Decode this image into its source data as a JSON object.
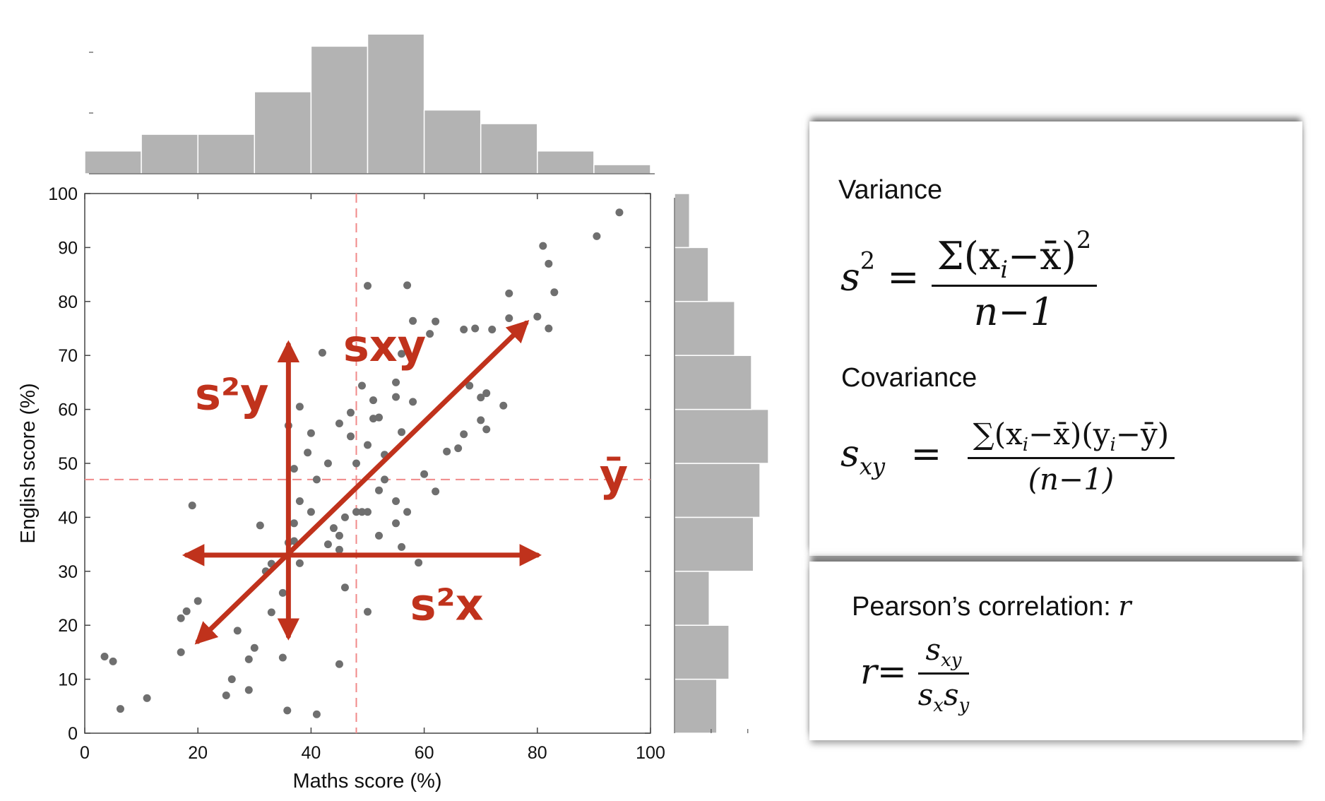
{
  "chart_data": {
    "type": "scatter",
    "xlabel": "Maths score (%)",
    "ylabel": "English score (%)",
    "xlim": [
      0,
      100
    ],
    "ylim": [
      0,
      100
    ],
    "xticks": [
      "0",
      "20",
      "40",
      "60",
      "80",
      "100"
    ],
    "yticks": [
      "0",
      "10",
      "20",
      "30",
      "40",
      "50",
      "60",
      "70",
      "80",
      "90",
      "100"
    ],
    "grid": false,
    "mean_x": 48,
    "mean_y": 47,
    "points": [
      [
        3.5,
        14.2
      ],
      [
        5,
        13.3
      ],
      [
        6.3,
        4.5
      ],
      [
        11,
        6.5
      ],
      [
        17,
        21.3
      ],
      [
        17,
        15
      ],
      [
        18,
        22.6
      ],
      [
        19,
        42.2
      ],
      [
        20,
        24.5
      ],
      [
        25,
        7
      ],
      [
        26,
        10
      ],
      [
        27,
        19
      ],
      [
        29,
        8
      ],
      [
        29,
        13.7
      ],
      [
        30,
        15.8
      ],
      [
        31,
        38.5
      ],
      [
        32,
        30
      ],
      [
        33,
        22.4
      ],
      [
        33,
        31.4
      ],
      [
        35,
        14
      ],
      [
        35,
        26
      ],
      [
        35.8,
        4.2
      ],
      [
        36,
        35.3
      ],
      [
        36,
        57
      ],
      [
        37,
        49
      ],
      [
        37,
        38.9
      ],
      [
        37,
        35.6
      ],
      [
        38,
        60.5
      ],
      [
        38,
        43
      ],
      [
        38,
        31.5
      ],
      [
        39.4,
        52
      ],
      [
        40,
        55.6
      ],
      [
        40,
        41
      ],
      [
        41,
        3.5
      ],
      [
        41,
        47
      ],
      [
        42,
        70.5
      ],
      [
        43,
        50
      ],
      [
        43,
        35
      ],
      [
        44,
        38
      ],
      [
        45,
        12.8
      ],
      [
        45,
        57.4
      ],
      [
        45,
        36.6
      ],
      [
        45,
        34
      ],
      [
        46,
        27
      ],
      [
        46,
        40
      ],
      [
        47,
        59.4
      ],
      [
        47,
        55
      ],
      [
        48,
        50
      ],
      [
        48,
        41
      ],
      [
        49,
        64.4
      ],
      [
        49,
        41
      ],
      [
        50,
        22.5
      ],
      [
        50,
        41
      ],
      [
        50,
        53.4
      ],
      [
        50,
        82.9
      ],
      [
        51,
        58.3
      ],
      [
        51,
        61.7
      ],
      [
        52,
        45
      ],
      [
        52,
        58.5
      ],
      [
        52,
        36.6
      ],
      [
        53,
        51.6
      ],
      [
        53,
        47
      ],
      [
        55,
        65
      ],
      [
        55,
        43
      ],
      [
        55,
        62.3
      ],
      [
        55,
        38.9
      ],
      [
        56,
        70.3
      ],
      [
        56,
        55.8
      ],
      [
        56,
        34.5
      ],
      [
        57,
        41
      ],
      [
        57,
        83
      ],
      [
        58,
        76.4
      ],
      [
        58,
        61.4
      ],
      [
        59,
        31.6
      ],
      [
        60,
        48
      ],
      [
        61,
        74
      ],
      [
        62,
        44.8
      ],
      [
        62,
        76.3
      ],
      [
        64,
        52.2
      ],
      [
        66,
        52.8
      ],
      [
        67,
        74.8
      ],
      [
        67,
        55.4
      ],
      [
        68,
        64.4
      ],
      [
        69,
        75
      ],
      [
        70,
        58
      ],
      [
        70,
        62.2
      ],
      [
        71,
        56.3
      ],
      [
        71,
        63
      ],
      [
        72,
        74.8
      ],
      [
        74,
        60.7
      ],
      [
        75,
        76.9
      ],
      [
        75,
        81.5
      ],
      [
        80,
        77.2
      ],
      [
        81,
        90.3
      ],
      [
        82,
        87
      ],
      [
        82,
        75
      ],
      [
        83,
        81.7
      ],
      [
        90.5,
        92.1
      ],
      [
        94.5,
        96.5
      ]
    ],
    "x_histogram": {
      "bins": [
        0,
        10,
        20,
        30,
        40,
        50,
        60,
        70,
        80,
        90,
        100
      ],
      "counts": [
        0.15,
        0.26,
        0.26,
        0.54,
        0.84,
        0.92,
        0.42,
        0.33,
        0.15,
        0.06
      ],
      "axis_ticks": [
        0.4,
        0.8
      ]
    },
    "y_histogram": {
      "bins": [
        0,
        10,
        20,
        30,
        40,
        50,
        60,
        70,
        80,
        90,
        100
      ],
      "counts": [
        0.45,
        0.58,
        0.37,
        0.84,
        0.91,
        1.0,
        0.82,
        0.64,
        0.36,
        0.16
      ],
      "axis_ticks": [
        0.5,
        1.0
      ]
    },
    "annotations": [
      "s²y",
      "sxy",
      "s²x",
      "ȳ"
    ]
  },
  "colors": {
    "points": "#6f6f6f",
    "histogram": "#b3b3b3",
    "annotation": "#c0321c",
    "mean_line": "#f08a8a"
  },
  "formulas": {
    "variance_title": "Variance",
    "variance": {
      "lhs": "s",
      "lhs_sup": "2",
      "eq": "=",
      "numerator": "Σ(x",
      "numerator_sub": "i",
      "numerator_rest": "−x̄)",
      "numerator_sup": "2",
      "denominator": "n−1"
    },
    "covariance_title": "Covariance",
    "covariance": {
      "lhs": "s",
      "lhs_sub": "xy",
      "eq": "=",
      "numerator": "∑(x",
      "numerator_sub1": "i",
      "numerator_mid": "−x̄)(y",
      "numerator_sub2": "i",
      "numerator_rest": "−ȳ)",
      "denominator": "(n−1)"
    },
    "pearson_title": "Pearson’s correlation: ",
    "pearson_symbol": "r",
    "pearson": {
      "lhs": "r",
      "eq": "=",
      "numerator": "s",
      "numerator_sub": "xy",
      "den1": "s",
      "den1_sub": "x",
      "den2": "s",
      "den2_sub": "y"
    }
  }
}
